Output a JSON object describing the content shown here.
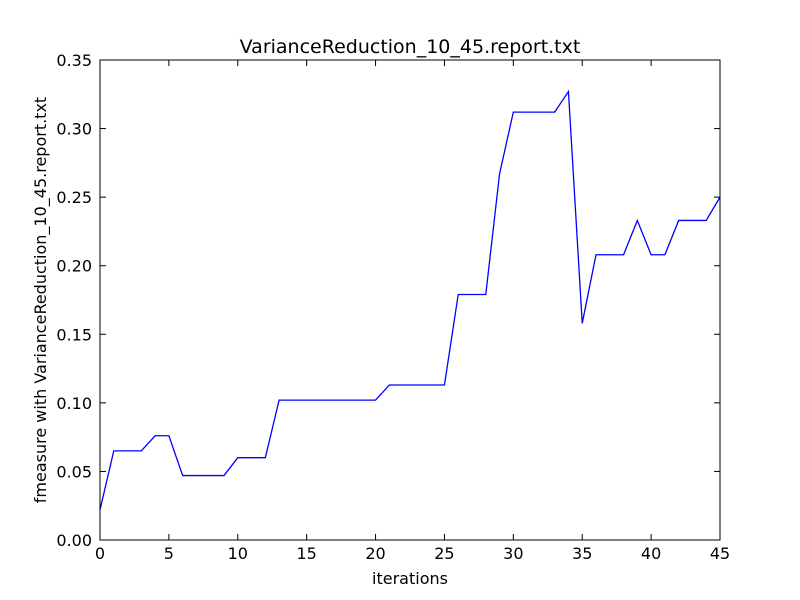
{
  "chart_data": {
    "type": "line",
    "title": "VarianceReduction_10_45.report.txt",
    "xlabel": "iterations",
    "ylabel": "fmeasure with VarianceReduction_10_45.report.txt",
    "xlim": [
      0,
      45
    ],
    "ylim": [
      0,
      0.35
    ],
    "grid": false,
    "legend": "none",
    "x_ticks": [
      0,
      5,
      10,
      15,
      20,
      25,
      30,
      35,
      40,
      45
    ],
    "x_tick_labels": [
      "0",
      "5",
      "10",
      "15",
      "20",
      "25",
      "30",
      "35",
      "40",
      "45"
    ],
    "y_ticks": [
      0,
      0.05,
      0.1,
      0.15,
      0.2,
      0.25,
      0.3,
      0.35
    ],
    "y_tick_labels": [
      "0.00",
      "0.05",
      "0.10",
      "0.15",
      "0.20",
      "0.25",
      "0.30",
      "0.35"
    ],
    "series": [
      {
        "color": "#0000ff",
        "x": [
          0,
          1,
          2,
          3,
          4,
          5,
          6,
          7,
          8,
          9,
          10,
          11,
          12,
          13,
          14,
          15,
          16,
          17,
          18,
          19,
          20,
          21,
          22,
          23,
          24,
          25,
          26,
          27,
          28,
          29,
          30,
          31,
          32,
          33,
          34,
          35,
          36,
          37,
          38,
          39,
          40,
          41,
          42,
          43,
          44,
          45
        ],
        "y": [
          0.022,
          0.065,
          0.065,
          0.065,
          0.076,
          0.076,
          0.047,
          0.047,
          0.047,
          0.047,
          0.06,
          0.06,
          0.06,
          0.102,
          0.102,
          0.102,
          0.102,
          0.102,
          0.102,
          0.102,
          0.102,
          0.113,
          0.113,
          0.113,
          0.113,
          0.113,
          0.179,
          0.179,
          0.179,
          0.267,
          0.312,
          0.312,
          0.312,
          0.312,
          0.327,
          0.158,
          0.208,
          0.208,
          0.208,
          0.233,
          0.208,
          0.208,
          0.233,
          0.233,
          0.233,
          0.25
        ]
      }
    ]
  }
}
